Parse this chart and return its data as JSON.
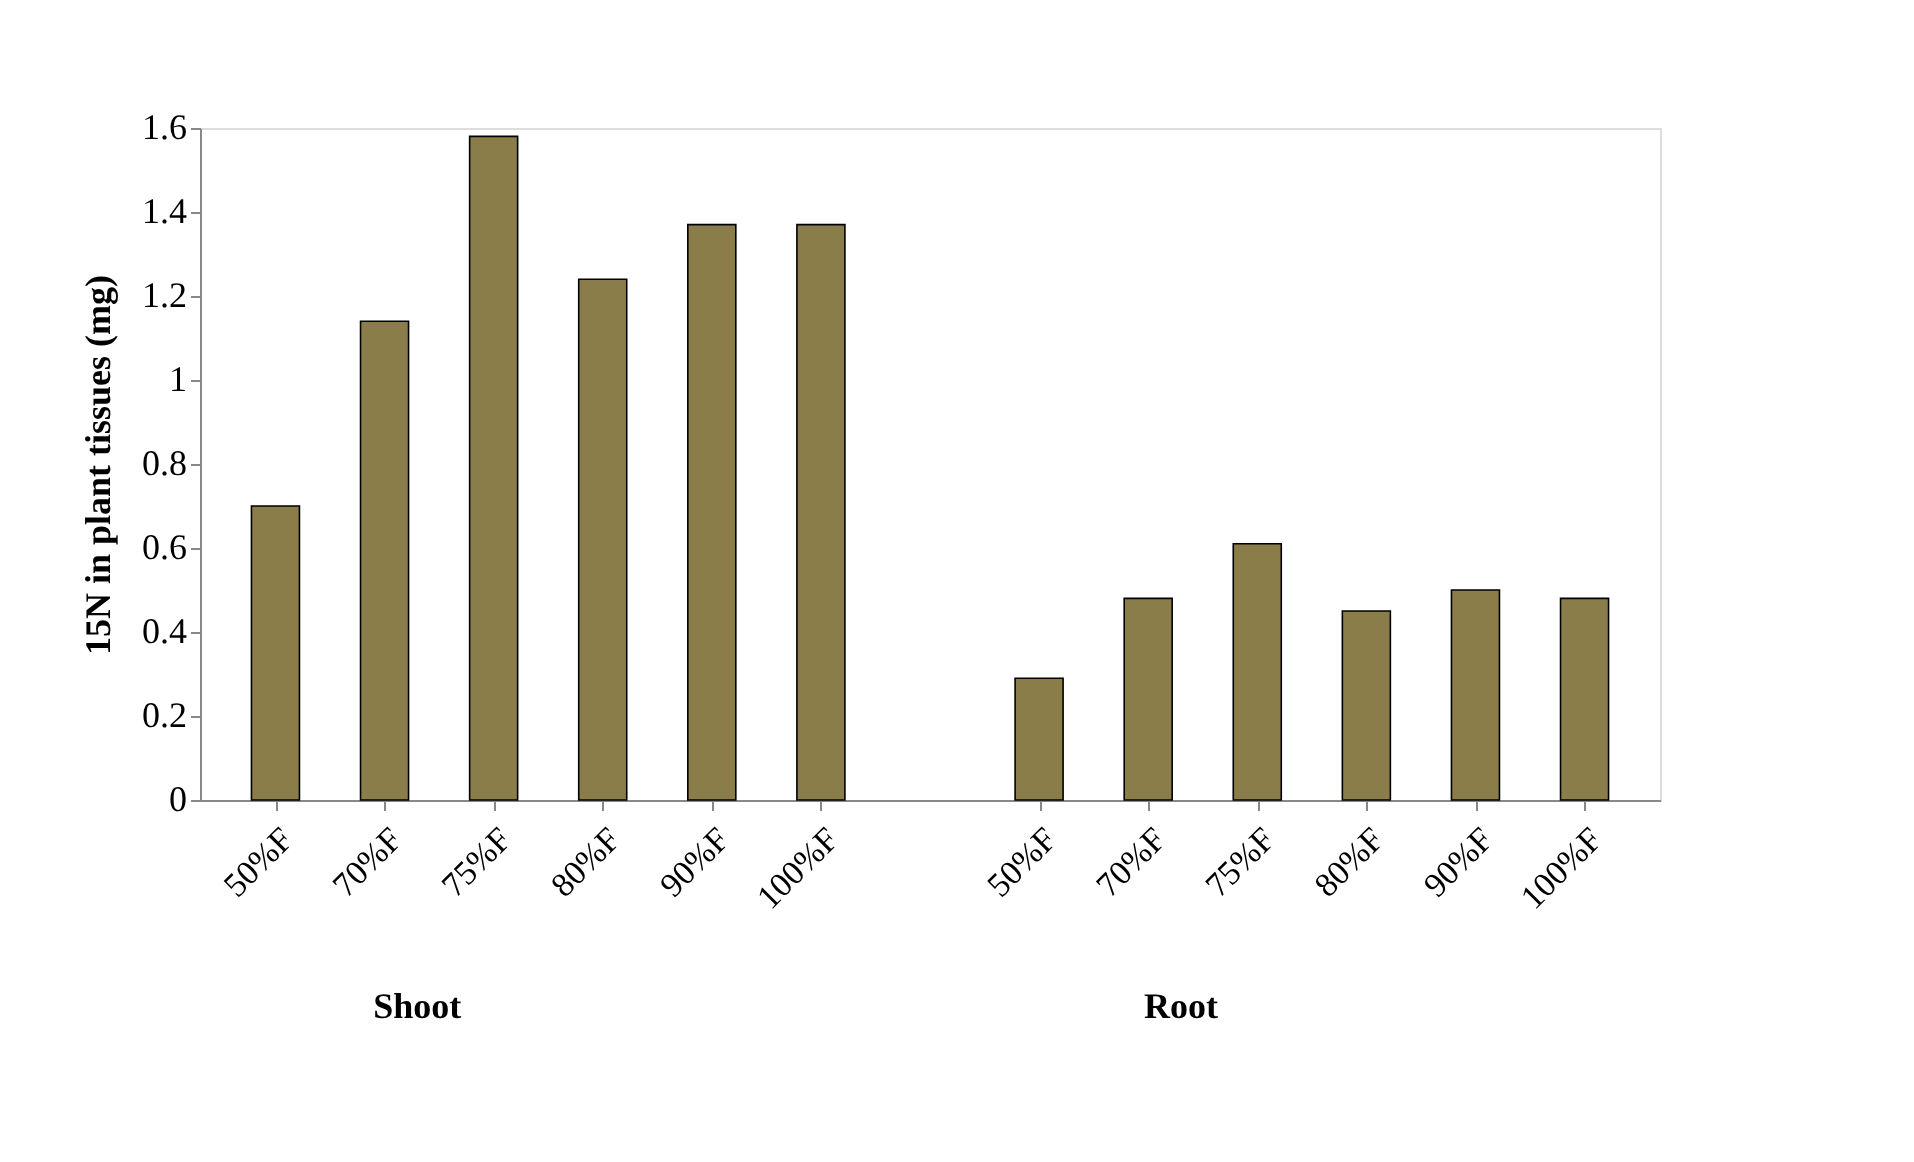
{
  "chart_data": {
    "type": "bar",
    "ylabel": "15N in plant tissues (mg)",
    "categories": [
      "50%F",
      "70%F",
      "75%F",
      "80%F",
      "90%F",
      "100%F",
      null,
      "50%F",
      "70%F",
      "75%F",
      "80%F",
      "90%F",
      "100%F"
    ],
    "values": [
      0.7,
      1.14,
      1.58,
      1.24,
      1.37,
      1.37,
      null,
      0.29,
      0.48,
      0.61,
      0.45,
      0.5,
      0.48
    ],
    "color": "#8b7d4a",
    "ylim": [
      0,
      1.6
    ],
    "yticks": [
      0,
      0.2,
      0.4,
      0.6,
      0.8,
      1,
      1.2,
      1.4,
      1.6
    ],
    "grid": false,
    "annotations": [
      "Shoot",
      "Root"
    ]
  }
}
